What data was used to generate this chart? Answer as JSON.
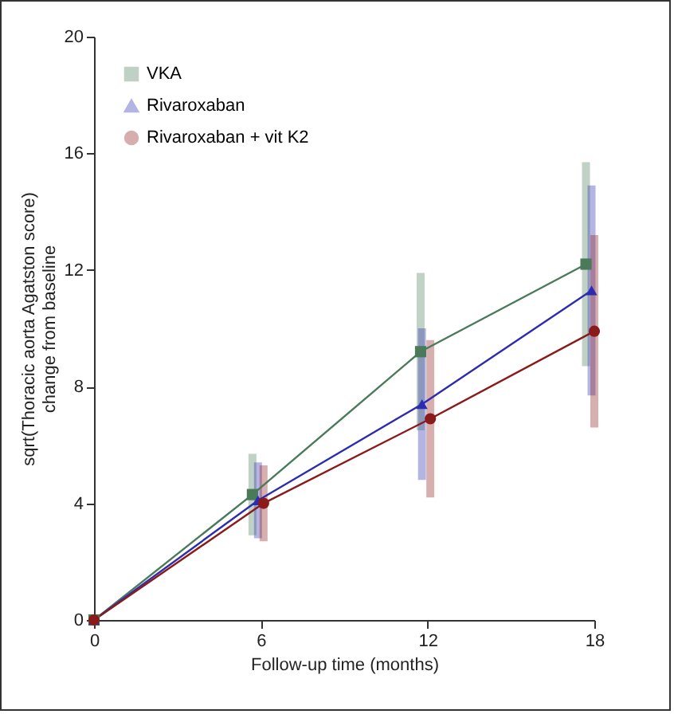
{
  "chart_data": {
    "type": "line",
    "xlabel": "Follow-up time (months)",
    "ylabel": "sqrt(Thoracic aorta Agatston score)\nchange from baseline",
    "xlim": [
      0,
      18
    ],
    "xticks": [
      0,
      6,
      12,
      18
    ],
    "ylim": [
      0,
      20
    ],
    "yticks": [
      0,
      4,
      8,
      12,
      16,
      20
    ],
    "grid": false,
    "legend": "top left",
    "line_style": "solid",
    "series": [
      {
        "name": "VKA",
        "color": "#4a7a5a",
        "marker": "square",
        "x": [
          0,
          5.7,
          11.75,
          17.7
        ],
        "values": [
          0,
          4.3,
          9.2,
          12.2
        ],
        "errors": [
          null,
          1.4,
          2.7,
          3.5
        ]
      },
      {
        "name": "Rivaroxaban",
        "color": "#2c2cb0",
        "marker": "triangle",
        "x": [
          0,
          5.9,
          11.8,
          17.9
        ],
        "values": [
          0,
          4.1,
          7.4,
          11.3
        ],
        "errors": [
          null,
          1.3,
          2.6,
          3.6
        ]
      },
      {
        "name": "Rivaroxaban + vit K2",
        "color": "#8b1a1a",
        "marker": "circle",
        "x": [
          0,
          6.1,
          12.1,
          18
        ],
        "values": [
          0,
          4.0,
          6.9,
          9.9
        ],
        "errors": [
          null,
          1.3,
          2.7,
          3.3
        ]
      }
    ]
  }
}
